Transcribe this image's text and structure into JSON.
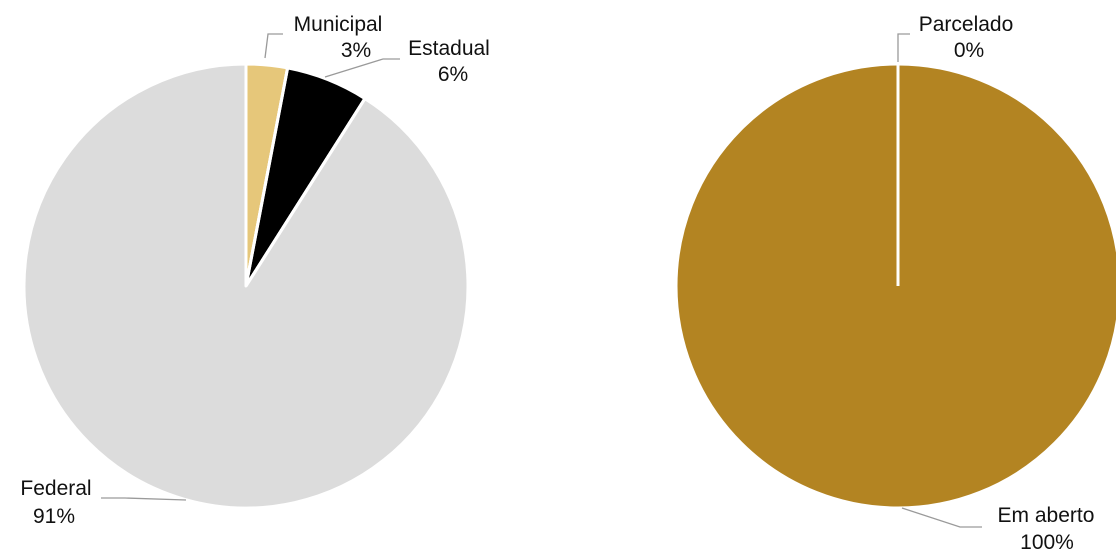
{
  "chart_data": [
    {
      "type": "pie",
      "title": "",
      "categories": [
        "Municipal",
        "Estadual",
        "Federal"
      ],
      "values": [
        3,
        6,
        91
      ],
      "value_labels": [
        "3%",
        "6%",
        "91%"
      ],
      "colors": [
        "#e6c77a",
        "#000000",
        "#dcdcdc"
      ],
      "start_angle": "12 o'clock",
      "direction": "clockwise",
      "legend": "none",
      "label_style": "outside with leader lines"
    },
    {
      "type": "pie",
      "title": "",
      "categories": [
        "Parcelado",
        "Em aberto"
      ],
      "values": [
        0,
        100
      ],
      "value_labels": [
        "0%",
        "100%"
      ],
      "colors": [
        "#ffffff",
        "#b38422"
      ],
      "start_angle": "12 o'clock",
      "direction": "clockwise",
      "legend": "none",
      "label_style": "outside with leader lines"
    }
  ]
}
